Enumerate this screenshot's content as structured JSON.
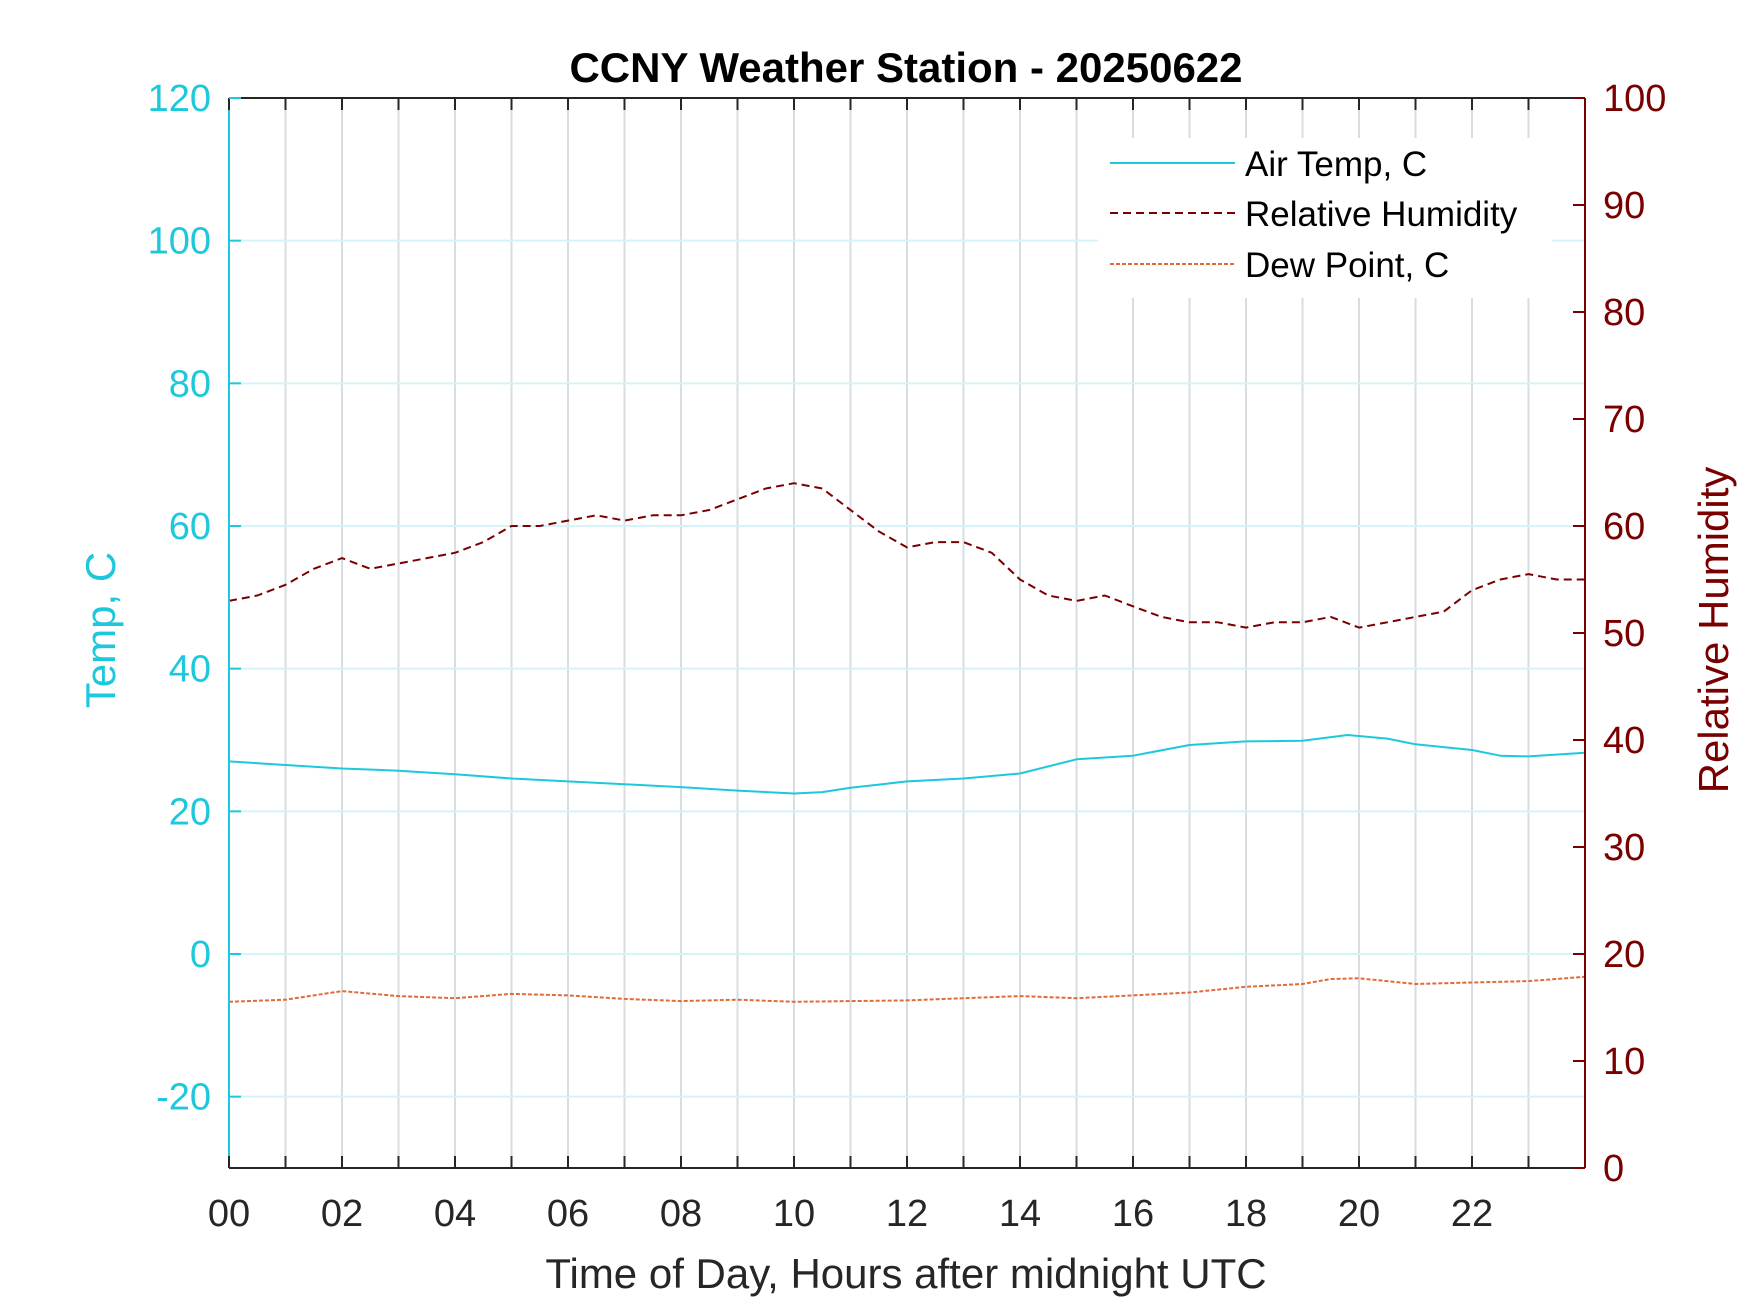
{
  "chart_data": {
    "type": "line",
    "title": "CCNY Weather Station - 20250622",
    "xlabel": "Time of Day, Hours after midnight UTC",
    "ylabel_left": "Temp, C",
    "ylabel_right": "Relative Humidity",
    "xlim": [
      0,
      24
    ],
    "ylim_left": [
      -30,
      120
    ],
    "ylim_right": [
      0,
      100
    ],
    "x_ticks": [
      "00",
      "02",
      "04",
      "06",
      "08",
      "10",
      "12",
      "14",
      "16",
      "18",
      "20",
      "22"
    ],
    "x_tick_values": [
      0,
      2,
      4,
      6,
      8,
      10,
      12,
      14,
      16,
      18,
      20,
      22
    ],
    "y_left_ticks": [
      "-20",
      "0",
      "20",
      "40",
      "60",
      "80",
      "100",
      "120"
    ],
    "y_left_tick_values": [
      -20,
      0,
      20,
      40,
      60,
      80,
      100,
      120
    ],
    "y_right_ticks": [
      "0",
      "10",
      "20",
      "30",
      "40",
      "50",
      "60",
      "70",
      "80",
      "90",
      "100"
    ],
    "y_right_tick_values": [
      0,
      10,
      20,
      30,
      40,
      50,
      60,
      70,
      80,
      90,
      100
    ],
    "grid": true,
    "legend_position": "top-right",
    "colors": {
      "temp": "#1ec8dc",
      "rh": "#7a0000",
      "dew": "#e06a3a",
      "axis": "#262626",
      "grid": "#d7dde3"
    },
    "legend": [
      "Air Temp, C",
      "Relative Humidity",
      "Dew Point, C"
    ],
    "series": [
      {
        "name": "Air Temp, C",
        "axis": "left",
        "x": [
          0,
          1,
          2,
          3,
          4,
          5,
          6,
          7,
          8,
          9,
          10,
          10.5,
          11,
          12,
          13,
          14,
          15,
          16,
          17,
          18,
          19,
          19.8,
          20.5,
          21,
          22,
          22.5,
          23,
          24
        ],
        "y": [
          27,
          26.5,
          26,
          25.7,
          25.2,
          24.6,
          24.2,
          23.8,
          23.4,
          22.9,
          22.5,
          22.7,
          23.3,
          24.2,
          24.6,
          25.3,
          27.3,
          27.8,
          29.3,
          29.8,
          29.9,
          30.7,
          30.2,
          29.4,
          28.6,
          27.8,
          27.7,
          28.2
        ]
      },
      {
        "name": "Relative Humidity",
        "axis": "right",
        "x": [
          0,
          0.5,
          1,
          1.5,
          2,
          2.5,
          3,
          3.5,
          4,
          4.5,
          5,
          5.5,
          6,
          6.5,
          7,
          7.5,
          8,
          8.5,
          9,
          9.5,
          10,
          10.5,
          11,
          11.5,
          12,
          12.5,
          13,
          13.5,
          14,
          14.5,
          15,
          15.5,
          16,
          16.5,
          17,
          17.5,
          18,
          18.5,
          19,
          19.5,
          20,
          20.5,
          21,
          21.5,
          22,
          22.5,
          23,
          23.5,
          24
        ],
        "y": [
          53,
          53.5,
          54.5,
          56,
          57,
          56,
          56.5,
          57,
          57.5,
          58.5,
          60,
          60,
          60.5,
          61,
          60.5,
          61,
          61,
          61.5,
          62.5,
          63.5,
          64,
          63.5,
          61.5,
          59.5,
          58,
          58.5,
          58.5,
          57.5,
          55,
          53.5,
          53,
          53.5,
          52.5,
          51.5,
          51,
          51,
          50.5,
          51,
          51,
          51.5,
          50.5,
          51,
          51.5,
          52,
          54,
          55,
          55.5,
          55,
          55
        ]
      },
      {
        "name": "Dew Point, C",
        "axis": "left",
        "x": [
          0,
          1,
          2,
          3,
          4,
          5,
          6,
          7,
          8,
          9,
          10,
          11,
          12,
          13,
          14,
          15,
          16,
          17,
          18,
          19,
          19.5,
          20,
          21,
          22,
          23,
          24
        ],
        "y": [
          -6.7,
          -6.4,
          -5.2,
          -5.9,
          -6.2,
          -5.6,
          -5.8,
          -6.3,
          -6.6,
          -6.4,
          -6.7,
          -6.6,
          -6.5,
          -6.2,
          -5.9,
          -6.2,
          -5.8,
          -5.4,
          -4.6,
          -4.2,
          -3.5,
          -3.4,
          -4.2,
          -4.0,
          -3.8,
          -3.2
        ]
      }
    ]
  }
}
